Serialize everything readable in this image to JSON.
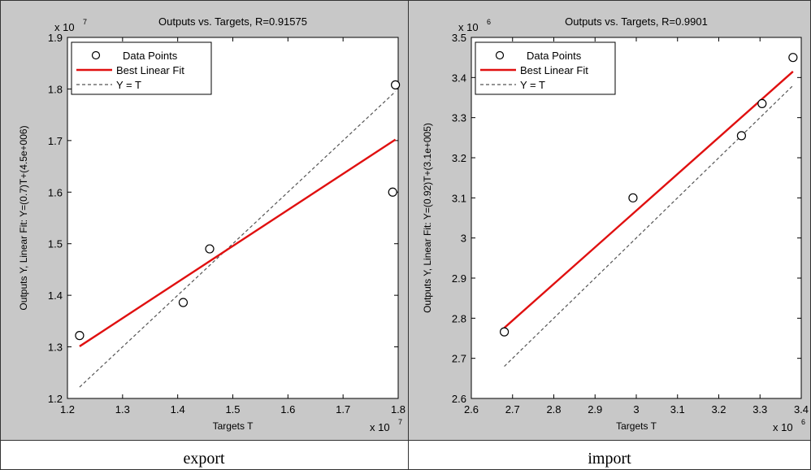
{
  "chart_data": [
    {
      "type": "scatter",
      "title": "Outputs vs. Targets, R=0.91575",
      "xlabel": "Targets T",
      "ylabel": "Outputs Y,  Linear Fit:  Y=(0.7)T+(4.5e+006)",
      "x_exponent_base": "x 10",
      "x_exponent_power": "7",
      "y_exponent_base": "x 10",
      "y_exponent_power": "7",
      "xlim": [
        1.2,
        1.8
      ],
      "ylim": [
        1.2,
        1.9
      ],
      "xticks": [
        1.2,
        1.3,
        1.4,
        1.5,
        1.6,
        1.7,
        1.8
      ],
      "xtick_labels": [
        "1.2",
        "1.3",
        "1.4",
        "1.5",
        "1.6",
        "1.7",
        "1.8"
      ],
      "yticks": [
        1.2,
        1.3,
        1.4,
        1.5,
        1.6,
        1.7,
        1.8,
        1.9
      ],
      "ytick_labels": [
        "1.2",
        "1.3",
        "1.4",
        "1.5",
        "1.6",
        "1.7",
        "1.8",
        "1.9"
      ],
      "points": [
        {
          "x": 1.222,
          "y": 1.322
        },
        {
          "x": 1.41,
          "y": 1.386
        },
        {
          "x": 1.458,
          "y": 1.49
        },
        {
          "x": 1.79,
          "y": 1.6
        },
        {
          "x": 1.795,
          "y": 1.808
        }
      ],
      "fit_line": [
        {
          "x": 1.222,
          "y": 1.301
        },
        {
          "x": 1.795,
          "y": 1.702
        }
      ],
      "ideal_line": [
        {
          "x": 1.222,
          "y": 1.222
        },
        {
          "x": 1.795,
          "y": 1.795
        }
      ],
      "legend": [
        "Data Points",
        "Best Linear Fit",
        "Y = T"
      ],
      "legend_position": "top-left",
      "caption": "export"
    },
    {
      "type": "scatter",
      "title": "Outputs vs. Targets, R=0.9901",
      "xlabel": "Targets T",
      "ylabel": "Outputs Y,  Linear Fit:  Y=(0.92)T+(3.1e+005)",
      "x_exponent_base": "x 10",
      "x_exponent_power": "6",
      "y_exponent_base": "x 10",
      "y_exponent_power": "6",
      "xlim": [
        2.6,
        3.4
      ],
      "ylim": [
        2.6,
        3.5
      ],
      "xticks": [
        2.6,
        2.7,
        2.8,
        2.9,
        3.0,
        3.1,
        3.2,
        3.3,
        3.4
      ],
      "xtick_labels": [
        "2.6",
        "2.7",
        "2.8",
        "2.9",
        "3",
        "3.1",
        "3.2",
        "3.3",
        "3.4"
      ],
      "yticks": [
        2.6,
        2.7,
        2.8,
        2.9,
        3.0,
        3.1,
        3.2,
        3.3,
        3.4,
        3.5
      ],
      "ytick_labels": [
        "2.6",
        "2.7",
        "2.8",
        "2.9",
        "3",
        "3.1",
        "3.2",
        "3.3",
        "3.4",
        "3.5"
      ],
      "points": [
        {
          "x": 2.68,
          "y": 2.766
        },
        {
          "x": 2.992,
          "y": 3.1
        },
        {
          "x": 3.255,
          "y": 3.255
        },
        {
          "x": 3.305,
          "y": 3.335
        },
        {
          "x": 3.38,
          "y": 3.45
        }
      ],
      "fit_line": [
        {
          "x": 2.68,
          "y": 2.776
        },
        {
          "x": 3.38,
          "y": 3.415
        }
      ],
      "ideal_line": [
        {
          "x": 2.68,
          "y": 2.68
        },
        {
          "x": 3.38,
          "y": 3.38
        }
      ],
      "legend": [
        "Data Points",
        "Best Linear Fit",
        "Y = T"
      ],
      "legend_position": "top-left",
      "caption": "import"
    }
  ]
}
